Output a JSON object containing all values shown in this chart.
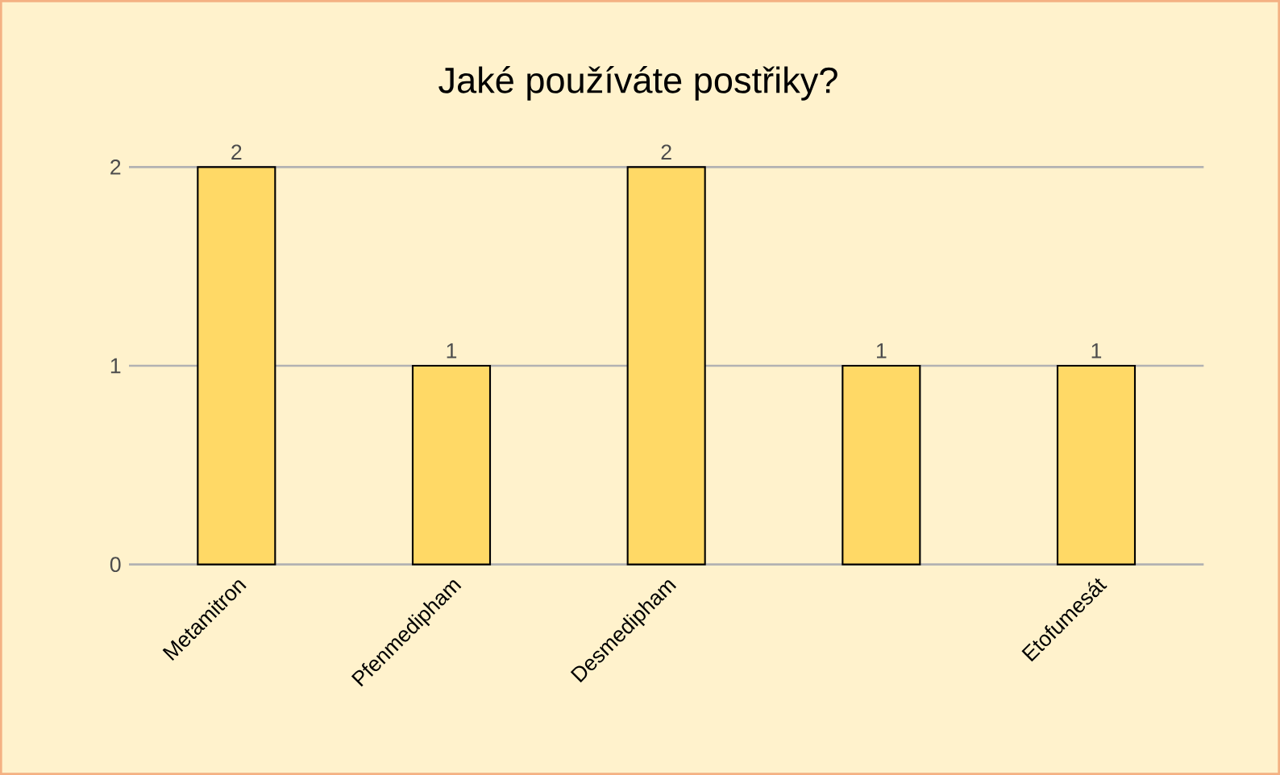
{
  "chart_data": {
    "type": "bar",
    "title": "Jaké používáte postřiky?",
    "categories": [
      "Metamitron",
      "Pfenmedipham",
      "Desmedipham",
      null,
      "Etofumesát"
    ],
    "values": [
      2,
      1,
      2,
      1,
      1
    ],
    "color": "#ffd966",
    "ylim": [
      0,
      2
    ],
    "yticks": [
      0,
      1,
      2
    ],
    "grid": "y",
    "data_labels": true
  }
}
